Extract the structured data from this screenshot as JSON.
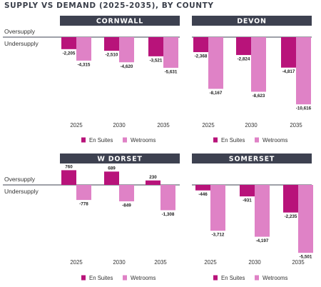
{
  "page_title": "SUPPLY VS DEMAND (2025-2035), BY COUNTY",
  "colors": {
    "en_suites": "#b8137a",
    "wetrooms": "#df82c6",
    "panel_header": "#3d4150",
    "baseline": "#3d4150"
  },
  "chart_data": [
    {
      "type": "bar",
      "title": "CORNWALL",
      "categories": [
        "2025",
        "2030",
        "2035"
      ],
      "series": [
        {
          "name": "En Suites",
          "values": [
            -2205,
            -2510,
            -3521
          ],
          "labels": [
            "-2,205",
            "-2,510",
            "-3,521"
          ]
        },
        {
          "name": "Wetrooms",
          "values": [
            -4315,
            -4620,
            -5631
          ],
          "labels": [
            "-4,315",
            "-4,620",
            "-5,631"
          ]
        }
      ],
      "zone_labels": {
        "above": "Oversupply",
        "below": "Undersupply"
      }
    },
    {
      "type": "bar",
      "title": "DEVON",
      "categories": [
        "2025",
        "2030",
        "2035"
      ],
      "series": [
        {
          "name": "En Suites",
          "values": [
            -2368,
            -2824,
            -4817
          ],
          "labels": [
            "-2,368",
            "-2,824",
            "-4,817"
          ]
        },
        {
          "name": "Wetrooms",
          "values": [
            -8167,
            -8623,
            -10616
          ],
          "labels": [
            "-8,167",
            "-8,623",
            "-10,616"
          ]
        }
      ]
    },
    {
      "type": "bar",
      "title": "W DORSET",
      "categories": [
        "2025",
        "2030",
        "2035"
      ],
      "series": [
        {
          "name": "En Suites",
          "values": [
            760,
            689,
            230
          ],
          "labels": [
            "760",
            "689",
            "230"
          ]
        },
        {
          "name": "Wetrooms",
          "values": [
            -778,
            -849,
            -1308
          ],
          "labels": [
            "-778",
            "-849",
            "-1,308"
          ]
        }
      ],
      "zone_labels": {
        "above": "Oversupply",
        "below": "Undersupply"
      }
    },
    {
      "type": "bar",
      "title": "SOMERSET",
      "categories": [
        "2025",
        "2030",
        "2035"
      ],
      "series": [
        {
          "name": "En Suites",
          "values": [
            -446,
            -931,
            -2235
          ],
          "labels": [
            "-446",
            "-931",
            "-2,235"
          ]
        },
        {
          "name": "Wetrooms",
          "values": [
            -3712,
            -4197,
            -5501
          ],
          "labels": [
            "-3,712",
            "-4,197",
            "-5,501"
          ]
        }
      ]
    }
  ]
}
